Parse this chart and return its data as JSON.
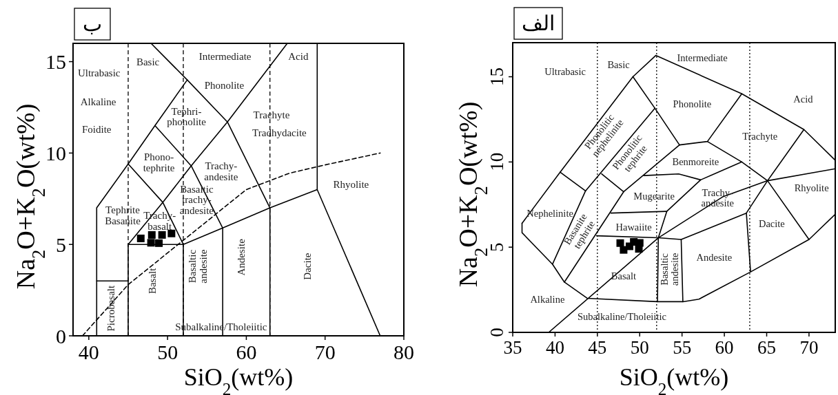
{
  "chart_data": [
    {
      "type": "scatter",
      "title": "ب",
      "xlabel": "SiO$_{2}$(wt%)",
      "ylabel": "Na$_{2}$O+K$_{2}$O(wt%)",
      "xlim": [
        38,
        80
      ],
      "ylim": [
        0,
        16
      ],
      "xticks": [
        40,
        50,
        60,
        70,
        80
      ],
      "yticks": [
        0,
        5,
        10,
        15
      ],
      "ref_lines": [
        {
          "axis": "x",
          "value": 45,
          "line_style": "dashed",
          "color": "#000000"
        },
        {
          "axis": "x",
          "value": 52,
          "line_style": "dashed",
          "color": "#000000"
        },
        {
          "axis": "x",
          "value": 63,
          "line_style": "dashed",
          "color": "#000000"
        }
      ],
      "series": [
        {
          "marker": "square",
          "color": "#000000",
          "x": [
            46.6,
            48.0,
            47.9,
            48.9,
            49.3,
            50.5
          ],
          "values": [
            5.33,
            5.52,
            5.09,
            5.07,
            5.52,
            5.6
          ]
        },
        {
          "type": "line",
          "color": "#000000",
          "x": [
            41,
            41,
            45,
            48.4,
            52.5
          ],
          "values": [
            0,
            7,
            9.4,
            11.5,
            14
          ]
        },
        {
          "type": "line",
          "color": "#000000",
          "x": [
            41,
            45
          ],
          "values": [
            3,
            3
          ]
        },
        {
          "type": "line",
          "color": "#000000",
          "x": [
            45,
            45,
            52,
            52
          ],
          "values": [
            0,
            5,
            5,
            0
          ]
        },
        {
          "type": "line",
          "color": "#000000",
          "x": [
            52,
            57,
            63,
            69,
            77
          ],
          "values": [
            5,
            5.9,
            7,
            8,
            0
          ]
        },
        {
          "type": "line",
          "color": "#000000",
          "x": [
            57,
            57
          ],
          "values": [
            0,
            5.9
          ]
        },
        {
          "type": "line",
          "color": "#000000",
          "x": [
            63,
            63
          ],
          "values": [
            0,
            7
          ]
        },
        {
          "type": "line",
          "color": "#000000",
          "x": [
            69,
            69
          ],
          "values": [
            8,
            16
          ]
        },
        {
          "type": "line",
          "color": "#000000",
          "x": [
            45,
            49.4,
            53,
            57.6,
            65.2
          ],
          "values": [
            5,
            7.3,
            9.3,
            11.7,
            16
          ]
        },
        {
          "type": "line",
          "color": "#000000",
          "x": [
            45,
            49.4,
            52
          ],
          "values": [
            9.4,
            7.3,
            5
          ]
        },
        {
          "type": "line",
          "color": "#000000",
          "x": [
            48.4,
            53,
            57
          ],
          "values": [
            11.5,
            9.3,
            5.9
          ]
        },
        {
          "type": "line",
          "color": "#000000",
          "x": [
            47.9,
            52.5,
            57.6,
            63
          ],
          "values": [
            16,
            14,
            11.7,
            7
          ]
        },
        {
          "type": "line",
          "color": "#000000",
          "line_style": "dashed",
          "x": [
            39.2,
            45,
            60,
            65.5,
            70,
            77
          ],
          "values": [
            0,
            2.8,
            8,
            8.9,
            9.35,
            10
          ]
        }
      ],
      "annotations": [
        "Basic",
        "Intermediate",
        "Acid",
        "Ultrabasic",
        "Phonolite",
        "Alkaline",
        "Tephri-\nphonolite",
        "Trachyte",
        "Tradhydacite",
        "Foidite",
        "Phono-\ntephrite",
        "Trachy-\nandesite",
        "Rhyolite",
        "Basaltic\ntrachy-\nandesite",
        "Tephrite\nBasanite",
        "Trachy-\nbasalt",
        "Subalkaline/Tholeiitic",
        "Picrobasalt",
        "Basalt",
        "Basaltic\nandesite",
        "Andesite",
        "Dacite"
      ]
    },
    {
      "type": "scatter",
      "title": "الف",
      "xlabel": "SiO$_{2}$(wt%)",
      "ylabel": "Na$_{2}$O+K$_{2}$O(wt%)",
      "xlim": [
        35,
        73.1
      ],
      "ylim": [
        0,
        17
      ],
      "xticks": [
        35,
        40,
        45,
        50,
        55,
        60,
        65,
        70
      ],
      "yticks": [
        0,
        5,
        10,
        15
      ],
      "ref_lines": [
        {
          "axis": "x",
          "value": 45,
          "line_style": "dotted",
          "color": "#000000"
        },
        {
          "axis": "x",
          "value": 52,
          "line_style": "dotted",
          "color": "#000000"
        },
        {
          "axis": "x",
          "value": 63,
          "line_style": "dotted",
          "color": "#000000"
        }
      ],
      "series": [
        {
          "marker": "square",
          "color": "#000000",
          "x": [
            47.7,
            48.1,
            49.3,
            49.9,
            48.8,
            50.0
          ],
          "values": [
            5.24,
            4.84,
            5.31,
            4.9,
            5.05,
            5.25
          ]
        },
        {
          "type": "line",
          "color": "#000000",
          "x": [
            36.1,
            40.6,
            49.2,
            51.9,
            62.06,
            69.4,
            73.1
          ],
          "values": [
            6.4,
            9.4,
            15,
            16.25,
            14.0,
            11.9,
            10.1
          ]
        },
        {
          "type": "line",
          "color": "#000000",
          "x": [
            36.1,
            36.1,
            39.7,
            41.1,
            43.8,
            52.1,
            55.1,
            57,
            63.1,
            70,
            73.1
          ],
          "values": [
            6.4,
            5.85,
            4.0,
            2.95,
            2.0,
            1.8,
            1.8,
            1.95,
            3.55,
            5.45,
            6.93
          ]
        },
        {
          "type": "line",
          "color": "#000000",
          "x": [
            40.6,
            43.6
          ],
          "values": [
            9.4,
            8.3
          ]
        },
        {
          "type": "line",
          "color": "#000000",
          "x": [
            39.7,
            43.6,
            51.8
          ],
          "values": [
            4.0,
            8.3,
            13.15
          ]
        },
        {
          "type": "line",
          "color": "#000000",
          "x": [
            49.2,
            51.8,
            54.7
          ],
          "values": [
            15,
            13.15,
            11.0
          ]
        },
        {
          "type": "line",
          "color": "#000000",
          "x": [
            45.5,
            48.1
          ],
          "values": [
            9.3,
            8.25
          ]
        },
        {
          "type": "line",
          "color": "#000000",
          "x": [
            41.1,
            48.1,
            54.7
          ],
          "values": [
            2.95,
            8.25,
            11.0
          ]
        },
        {
          "type": "line",
          "color": "#000000",
          "x": [
            46.6,
            53.2
          ],
          "values": [
            7.0,
            7.1
          ]
        },
        {
          "type": "line",
          "color": "#000000",
          "x": [
            44.9,
            52.2,
            54.9
          ],
          "values": [
            5.67,
            5.55,
            5.45
          ]
        },
        {
          "type": "line",
          "color": "#000000",
          "x": [
            52.1,
            52.2,
            53.2,
            57.2,
            62.06
          ],
          "values": [
            1.8,
            5.55,
            7.1,
            8.95,
            10.0
          ]
        },
        {
          "type": "line",
          "color": "#000000",
          "x": [
            50.5,
            54.6,
            57.2
          ],
          "values": [
            9.2,
            9.3,
            8.95
          ]
        },
        {
          "type": "line",
          "color": "#000000",
          "x": [
            54.7,
            58.0,
            62.06
          ],
          "values": [
            11.0,
            11.2,
            14.0
          ]
        },
        {
          "type": "line",
          "color": "#000000",
          "x": [
            58.0,
            62.06,
            65.1,
            70
          ],
          "values": [
            11.2,
            10.0,
            8.9,
            5.45
          ]
        },
        {
          "type": "line",
          "color": "#000000",
          "x": [
            39.25,
            52.2,
            59.8,
            65.1,
            73.1
          ],
          "values": [
            0,
            5.55,
            7.95,
            8.9,
            9.6
          ]
        },
        {
          "type": "line",
          "color": "#000000",
          "x": [
            54.9,
            55.1
          ],
          "values": [
            5.45,
            1.8
          ]
        },
        {
          "type": "line",
          "color": "#000000",
          "x": [
            54.9,
            62.6,
            63.1
          ],
          "values": [
            5.45,
            7.0,
            3.55
          ]
        },
        {
          "type": "line",
          "color": "#000000",
          "x": [
            62.6,
            65.1,
            69.4
          ],
          "values": [
            7.0,
            8.9,
            11.9
          ]
        }
      ],
      "annotations": [
        "Ultrabasic",
        "Basic",
        "Intermediate",
        "Acid",
        "Phonolite",
        "Trachyte",
        "Benmoreite",
        "Rhyolite",
        "Mugearite",
        "Trachy-\nandesite",
        "Nephelinite",
        "Hawaiite",
        "Dacite",
        "Andesite",
        "Basalt",
        "Alkaline",
        "Subalkaline/Tholeiitic",
        "Phonolitic\nnephelinite",
        "Phonolitic\ntephrite",
        "Basanite\ntephrite",
        "Basaltic\nandesite"
      ]
    }
  ]
}
